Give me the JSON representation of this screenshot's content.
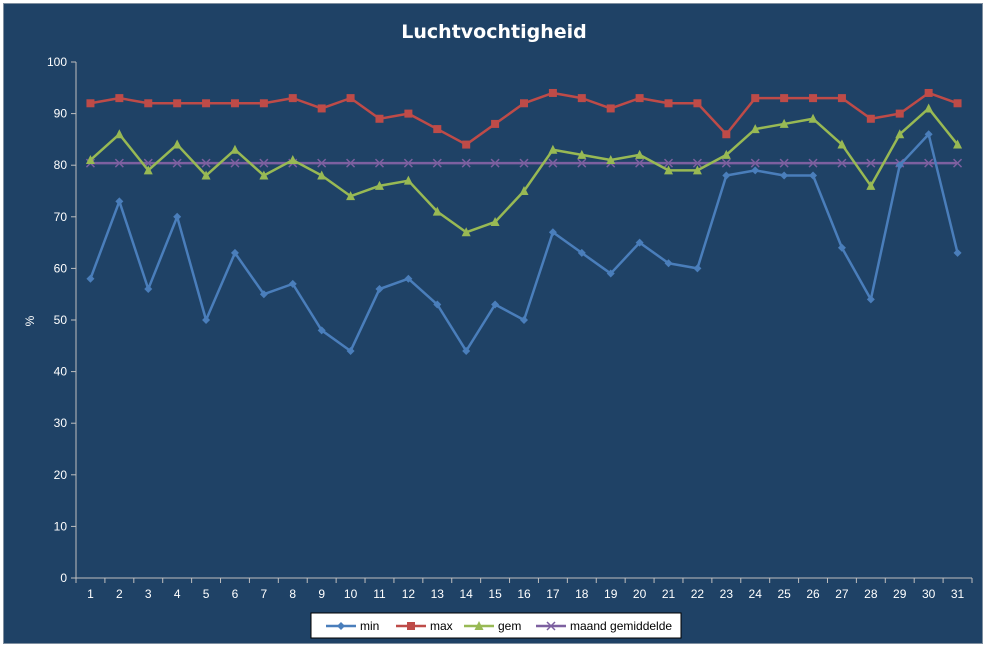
{
  "chart_data": {
    "type": "line",
    "title": "Luchtvochtigheid",
    "xlabel": "",
    "ylabel": "%",
    "ylim": [
      0,
      100
    ],
    "yticks": [
      0,
      10,
      20,
      30,
      40,
      50,
      60,
      70,
      80,
      90,
      100
    ],
    "grid": false,
    "legend_position": "bottom",
    "background": "#1f4266",
    "categories": [
      "1",
      "2",
      "3",
      "4",
      "5",
      "6",
      "7",
      "8",
      "9",
      "10",
      "11",
      "12",
      "13",
      "14",
      "15",
      "16",
      "17",
      "18",
      "19",
      "20",
      "21",
      "22",
      "23",
      "24",
      "25",
      "26",
      "27",
      "28",
      "29",
      "30",
      "31"
    ],
    "series": [
      {
        "name": "min",
        "color": "#4a7ebb",
        "marker": "diamond",
        "values": [
          58,
          73,
          56,
          70,
          50,
          63,
          55,
          57,
          48,
          44,
          56,
          58,
          53,
          44,
          53,
          50,
          67,
          63,
          59,
          65,
          61,
          60,
          78,
          79,
          78,
          78,
          64,
          54,
          80,
          86,
          63
        ]
      },
      {
        "name": "max",
        "color": "#be4b48",
        "marker": "square",
        "values": [
          92,
          93,
          92,
          92,
          92,
          92,
          92,
          93,
          91,
          93,
          89,
          90,
          87,
          84,
          88,
          92,
          94,
          93,
          91,
          93,
          92,
          92,
          86,
          93,
          93,
          93,
          93,
          89,
          90,
          94,
          92
        ]
      },
      {
        "name": "gem",
        "color": "#98b954",
        "marker": "triangle",
        "values": [
          81,
          86,
          79,
          84,
          78,
          83,
          78,
          81,
          78,
          74,
          76,
          77,
          71,
          67,
          69,
          75,
          83,
          82,
          81,
          82,
          79,
          79,
          82,
          87,
          88,
          89,
          84,
          76,
          86,
          91,
          84
        ]
      },
      {
        "name": "maand gemiddelde",
        "color": "#7d60a0",
        "marker": "x",
        "values": [
          80.4,
          80.4,
          80.4,
          80.4,
          80.4,
          80.4,
          80.4,
          80.4,
          80.4,
          80.4,
          80.4,
          80.4,
          80.4,
          80.4,
          80.4,
          80.4,
          80.4,
          80.4,
          80.4,
          80.4,
          80.4,
          80.4,
          80.4,
          80.4,
          80.4,
          80.4,
          80.4,
          80.4,
          80.4,
          80.4,
          80.4
        ]
      }
    ]
  }
}
